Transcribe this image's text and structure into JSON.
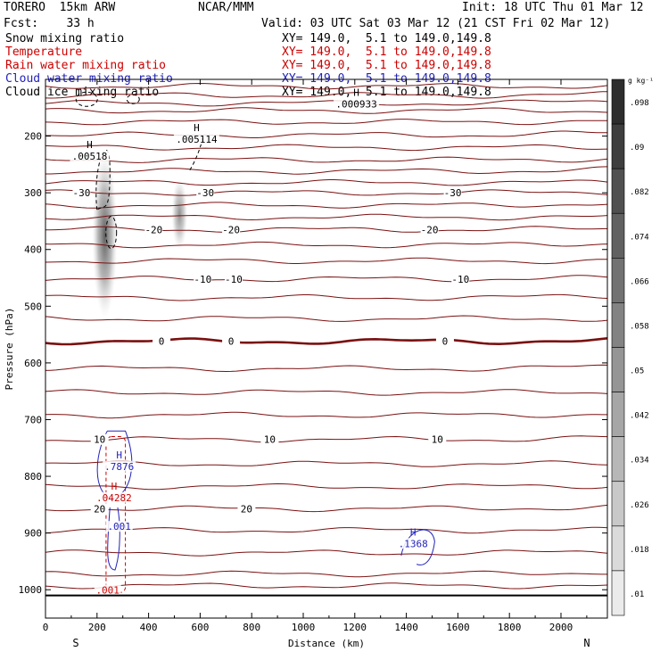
{
  "header": {
    "model": "TORERO  15km ARW",
    "center": "NCAR/MMM",
    "init": "Init: 18 UTC Thu 01 Mar 12",
    "fcst": "Fcst:    33 h",
    "valid": "Valid: 03 UTC Sat 03 Mar 12 (21 CST Fri 02 Mar 12)"
  },
  "fields": [
    {
      "name": "Snow mixing ratio",
      "xy": "XY= 149.0,  5.1 to 149.0,149.8",
      "color": "#000000"
    },
    {
      "name": "Temperature",
      "xy": "XY= 149.0,  5.1 to 149.0,149.8",
      "color": "#cc0000"
    },
    {
      "name": "Rain water mixing ratio",
      "xy": "XY= 149.0,  5.1 to 149.0,149.8",
      "color": "#cc0000"
    },
    {
      "name": "Cloud water mixing ratio",
      "xy": "XY= 149.0,  5.1 to 149.0,149.8",
      "color": "#2222bb"
    },
    {
      "name": "Cloud ice mixing ratio",
      "xy": "XY= 149.0,  5.1 to 149.0,149.8",
      "color": "#000000"
    }
  ],
  "chart_data": {
    "type": "cross-section",
    "xlabel": "Distance (km)",
    "ylabel": "Pressure (hPa)",
    "xlim": [
      0,
      2180
    ],
    "ylim": [
      1050,
      100
    ],
    "x_ticks": [
      0,
      200,
      400,
      600,
      800,
      1000,
      1200,
      1400,
      1600,
      1800,
      2000
    ],
    "y_ticks": [
      200,
      300,
      400,
      500,
      600,
      700,
      800,
      900,
      1000
    ],
    "x_endpoints": {
      "left": "S",
      "right": "N"
    },
    "surface_pressure": 1010,
    "temperature_isotherms": [
      {
        "label": "-30",
        "label_x": [
          140,
          620,
          1580
        ]
      },
      {
        "label": "-20",
        "label_x": [
          420,
          720,
          1490
        ]
      },
      {
        "label": "-10",
        "label_x": [
          610,
          730,
          1610
        ]
      },
      {
        "label": "0",
        "label_x": [
          450,
          720,
          1550
        ]
      },
      {
        "label": "10",
        "label_x": [
          210,
          870,
          1520
        ]
      },
      {
        "label": "20",
        "label_x": [
          210,
          780
        ]
      }
    ],
    "temperature_isotherm_pressures": [
      112,
      128,
      142,
      155,
      175,
      198,
      220,
      242,
      262,
      282,
      300,
      322,
      343,
      365,
      392,
      420,
      452,
      485,
      522,
      562,
      610,
      652,
      692,
      735,
      778,
      818,
      857,
      895,
      935,
      972,
      993
    ],
    "extrema_labels": [
      {
        "symbol": "H",
        "value": ".00518",
        "x": 185,
        "p": 240,
        "color": "#000000"
      },
      {
        "symbol": "H",
        "value": ".005114",
        "x": 600,
        "p": 210,
        "color": "#000000"
      },
      {
        "symbol": "H",
        "value": ".000933",
        "x": 1220,
        "p": 148,
        "color": "#000000"
      },
      {
        "symbol": "H",
        "value": ".7876",
        "x": 300,
        "p": 787,
        "color": "#2222bb"
      },
      {
        "symbol": "H",
        "value": ".04282",
        "x": 280,
        "p": 842,
        "color": "#cc0000"
      },
      {
        "symbol": "",
        "value": ".001",
        "x": 300,
        "p": 893,
        "color": "#2222bb"
      },
      {
        "symbol": "H",
        "value": ".1368",
        "x": 1440,
        "p": 923,
        "color": "#2222bb"
      },
      {
        "symbol": "",
        "value": ".001",
        "x": 255,
        "p": 1005,
        "color": "#cc0000"
      }
    ],
    "snow_shading": [
      {
        "x_center": 230,
        "p_top": 230,
        "p_bottom": 520,
        "max": 0.098
      },
      {
        "x_center": 520,
        "p_top": 275,
        "p_bottom": 400,
        "max": 0.05
      }
    ],
    "colorbar": {
      "unit": "g kg⁻¹",
      "levels": [
        ".01",
        ".018",
        ".026",
        ".034",
        ".042",
        ".05",
        ".058",
        ".066",
        ".074",
        ".082",
        ".09",
        ".098"
      ]
    }
  }
}
